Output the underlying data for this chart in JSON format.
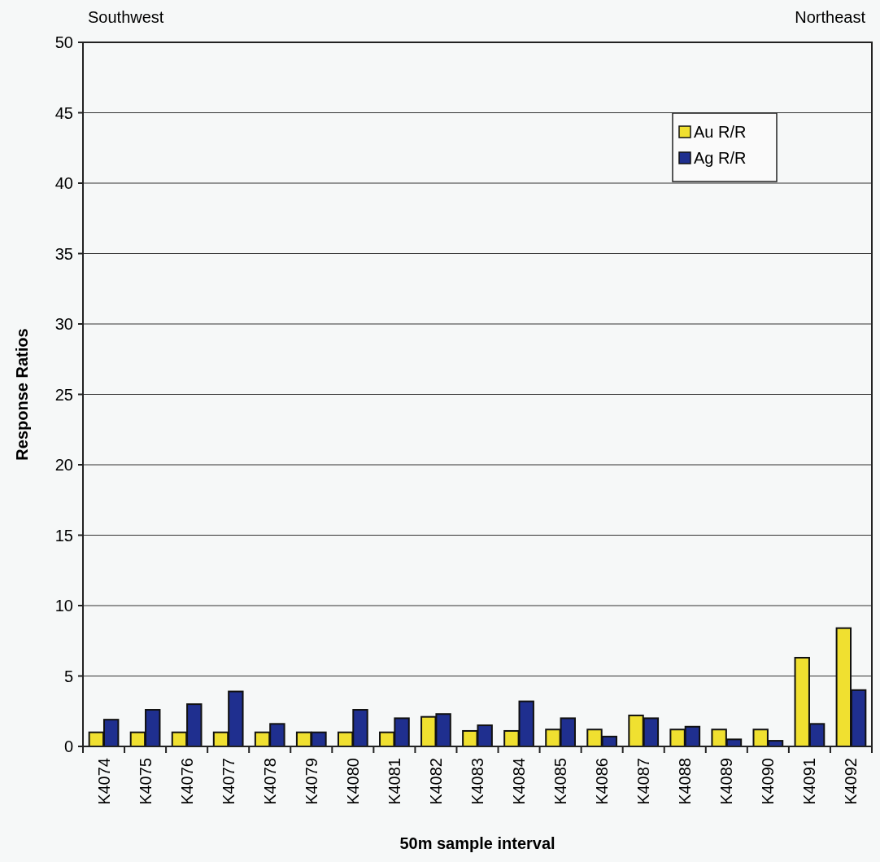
{
  "chart_data": {
    "type": "bar",
    "xlabel": "50m sample interval",
    "ylabel": "Response Ratios",
    "annotations": [
      "Southwest",
      "Northeast"
    ],
    "categories": [
      "K4074",
      "K4075",
      "K4076",
      "K4077",
      "K4078",
      "K4079",
      "K4080",
      "K4081",
      "K4082",
      "K4083",
      "K4084",
      "K4085",
      "K4086",
      "K4087",
      "K4088",
      "K4089",
      "K4090",
      "K4091",
      "K4092"
    ],
    "series": [
      {
        "name": "Au R/R",
        "color": "#f0e030",
        "values": [
          1.0,
          1.0,
          1.0,
          1.0,
          1.0,
          1.0,
          1.0,
          1.0,
          2.1,
          1.1,
          1.1,
          1.2,
          1.2,
          2.2,
          1.2,
          1.2,
          1.2,
          6.3,
          8.4
        ]
      },
      {
        "name": "Ag R/R",
        "color": "#1f2f8f",
        "values": [
          1.9,
          2.6,
          3.0,
          3.9,
          1.6,
          1.0,
          2.6,
          2.0,
          2.3,
          1.5,
          3.2,
          2.0,
          0.7,
          2.0,
          1.4,
          0.5,
          0.4,
          1.6,
          4.0
        ]
      }
    ],
    "ylim": [
      0,
      50
    ],
    "yticks": [
      0,
      5,
      10,
      15,
      20,
      25,
      30,
      35,
      40,
      45,
      50
    ],
    "grid": "y",
    "legend": "top right"
  }
}
